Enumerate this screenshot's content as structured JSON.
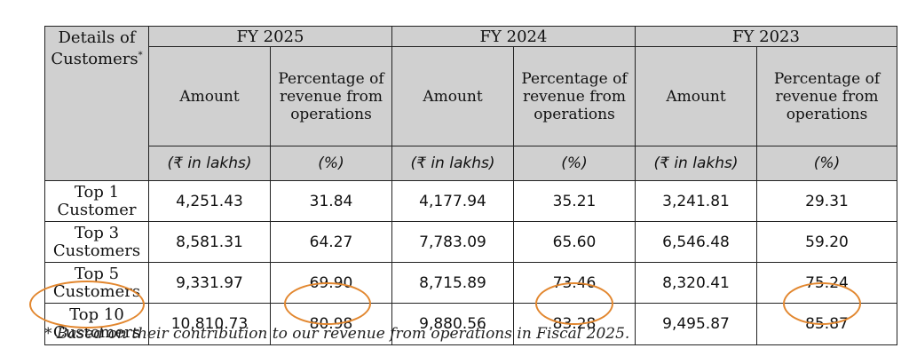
{
  "table": {
    "corner_header": "Details of Customers",
    "corner_marker": "*",
    "years": [
      "FY 2025",
      "FY 2024",
      "FY 2023"
    ],
    "col_headers": {
      "amount": "Amount",
      "pct": [
        "Percentage of revenue from operations",
        "Percentage of revenue from operations",
        "Percentage of revenue from operations"
      ]
    },
    "units": {
      "amount": "(₹ in lakhs)",
      "pct": "(%)"
    },
    "rows": [
      {
        "label": "Top 1 Customer",
        "values": [
          "4,251.43",
          "31.84",
          "4,177.94",
          "35.21",
          "3,241.81",
          "29.31"
        ]
      },
      {
        "label": "Top 3 Customers",
        "values": [
          "8,581.31",
          "64.27",
          "7,783.09",
          "65.60",
          "6,546.48",
          "59.20"
        ]
      },
      {
        "label": "Top 5 Customers",
        "values": [
          "9,331.97",
          "69.90",
          "8,715.89",
          "73.46",
          "8,320.41",
          "75.24"
        ]
      },
      {
        "label": "Top 10 Customers",
        "values": [
          "10,810.73",
          "80.98",
          "9,880.56",
          "83.28",
          "9,495.87",
          "85.87"
        ]
      }
    ]
  },
  "footnote": "* Based on their contribution to our revenue from operations in Fiscal 2025.",
  "highlight_color": "#e2872f"
}
